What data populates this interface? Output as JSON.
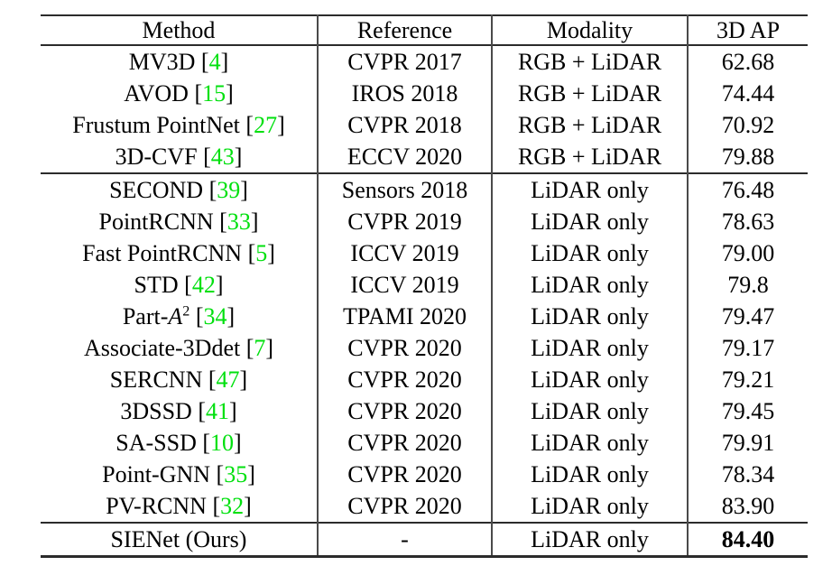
{
  "table": {
    "headers": [
      "Method",
      "Reference",
      "Modality",
      "3D AP"
    ],
    "colors": {
      "citation_green": "#00e00e",
      "text": "#000000",
      "rule": "#2b2b2b"
    },
    "groups": [
      {
        "name": "rgb-lidar-methods",
        "rows": [
          {
            "method": "MV3D",
            "cite": "4",
            "reference": "CVPR 2017",
            "modality": "RGB + LiDAR",
            "ap": "62.68"
          },
          {
            "method": "AVOD",
            "cite": "15",
            "reference": "IROS 2018",
            "modality": "RGB + LiDAR",
            "ap": "74.44"
          },
          {
            "method": "Frustum PointNet",
            "cite": "27",
            "reference": "CVPR 2018",
            "modality": "RGB + LiDAR",
            "ap": "70.92"
          },
          {
            "method": "3D-CVF",
            "cite": "43",
            "reference": "ECCV 2020",
            "modality": "RGB + LiDAR",
            "ap": "79.88"
          }
        ]
      },
      {
        "name": "lidar-only-methods",
        "rows": [
          {
            "method": "SECOND",
            "cite": "39",
            "reference": "Sensors 2018",
            "modality": "LiDAR only",
            "ap": "76.48"
          },
          {
            "method": "PointRCNN",
            "cite": "33",
            "reference": "CVPR 2019",
            "modality": "LiDAR only",
            "ap": "78.63"
          },
          {
            "method": "Fast PointRCNN",
            "cite": "5",
            "reference": "ICCV 2019",
            "modality": "LiDAR only",
            "ap": "79.00"
          },
          {
            "method": "STD",
            "cite": "42",
            "reference": "ICCV 2019",
            "modality": "LiDAR only",
            "ap": "79.8"
          },
          {
            "method_parts": [
              {
                "t": "Part-"
              },
              {
                "t": "A",
                "italic": true
              },
              {
                "t": "2",
                "sup": true
              }
            ],
            "cite": "34",
            "reference": "TPAMI 2020",
            "modality": "LiDAR only",
            "ap": "79.47"
          },
          {
            "method": "Associate-3Ddet",
            "cite": "7",
            "reference": "CVPR 2020",
            "modality": "LiDAR only",
            "ap": "79.17"
          },
          {
            "method": "SERCNN",
            "cite": "47",
            "reference": "CVPR 2020",
            "modality": "LiDAR only",
            "ap": "79.21"
          },
          {
            "method": "3DSSD",
            "cite": "41",
            "reference": "CVPR 2020",
            "modality": "LiDAR only",
            "ap": "79.45"
          },
          {
            "method": "SA-SSD",
            "cite": "10",
            "reference": "CVPR 2020",
            "modality": "LiDAR only",
            "ap": "79.91"
          },
          {
            "method": "Point-GNN",
            "cite": "35",
            "reference": "CVPR 2020",
            "modality": "LiDAR only",
            "ap": "78.34"
          },
          {
            "method": "PV-RCNN",
            "cite": "32",
            "reference": "CVPR 2020",
            "modality": "LiDAR only",
            "ap": "83.90"
          }
        ]
      },
      {
        "name": "ours",
        "rows": [
          {
            "method": "SIENet (Ours)",
            "reference": "-",
            "modality": "LiDAR only",
            "ap": "84.40",
            "ap_bold": true
          }
        ]
      }
    ]
  }
}
